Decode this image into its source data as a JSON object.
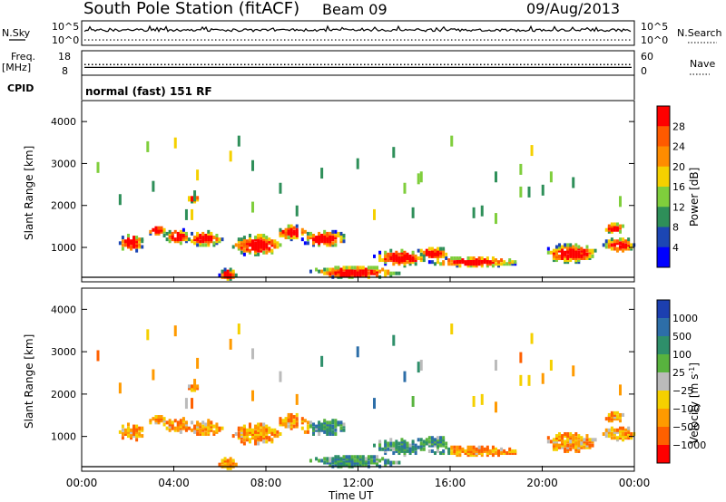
{
  "header": {
    "station": "South Pole Station (fitACF)",
    "beam": "Beam 09",
    "date": "09/Aug/2013"
  },
  "left_labels": {
    "nsky": "N.Sky",
    "freq": "Freq.",
    "freq_unit": "[MHz]",
    "cpid": "CPID"
  },
  "right_labels": {
    "nsearch": "N.Search",
    "nave": "Nave"
  },
  "cpid_text": "normal (fast) 151 RF",
  "chart_data": [
    {
      "type": "line",
      "name": "noise",
      "left_ticks": [
        "10^5",
        "10^0"
      ],
      "right_ticks": [
        "10^5",
        "10^0"
      ],
      "series": [
        {
          "name": "N.Sky",
          "style": "solid",
          "level": 0.62
        },
        {
          "name": "N.Search",
          "style": "dotted",
          "level": 0.22
        }
      ]
    },
    {
      "type": "line",
      "name": "frequency-nave",
      "left_ticks": [
        "18",
        "8"
      ],
      "right_ticks": [
        "60",
        "0"
      ],
      "series": [
        {
          "name": "Freq.",
          "style": "solid",
          "value_mhz": 11.2
        },
        {
          "name": "Nave",
          "style": "dotted",
          "value": 26
        }
      ]
    },
    {
      "type": "heatmap",
      "name": "power",
      "ylabel": "Slant Range [km]",
      "ylim": [
        180,
        4500
      ],
      "y_ticks": [
        1000,
        2000,
        3000,
        4000
      ],
      "xlim": [
        0,
        24
      ],
      "colorbar": {
        "label": "Power [dB]",
        "tick_labels": [
          "28",
          "24",
          "20",
          "16",
          "12",
          "8",
          "4"
        ],
        "colors": [
          "#ff0000",
          "#ff5a00",
          "#ff8c00",
          "#f5d000",
          "#7fce3c",
          "#2e8f59",
          "#1c46b4",
          "#0000ff"
        ]
      }
    },
    {
      "type": "heatmap",
      "name": "velocity",
      "ylabel": "Slant Range [km]",
      "ylim": [
        180,
        4500
      ],
      "y_ticks": [
        1000,
        2000,
        3000,
        4000
      ],
      "xlim": [
        0,
        24
      ],
      "xlabel": "Time UT",
      "x_ticks": [
        "00:00",
        "04:00",
        "08:00",
        "12:00",
        "16:00",
        "20:00",
        "00:00"
      ],
      "colorbar": {
        "label": "Velocity [m s",
        "label_sup": "-1",
        "label_end": "]",
        "tick_labels": [
          "1000",
          "500",
          "100",
          "25",
          "−25",
          "−100",
          "−500",
          "−1000"
        ],
        "colors": [
          "#1c3fb0",
          "#2d6ea8",
          "#2e8f6a",
          "#58b33e",
          "#bbbbbb",
          "#f5d000",
          "#ff9a00",
          "#ff6000",
          "#ff0000"
        ]
      }
    }
  ]
}
